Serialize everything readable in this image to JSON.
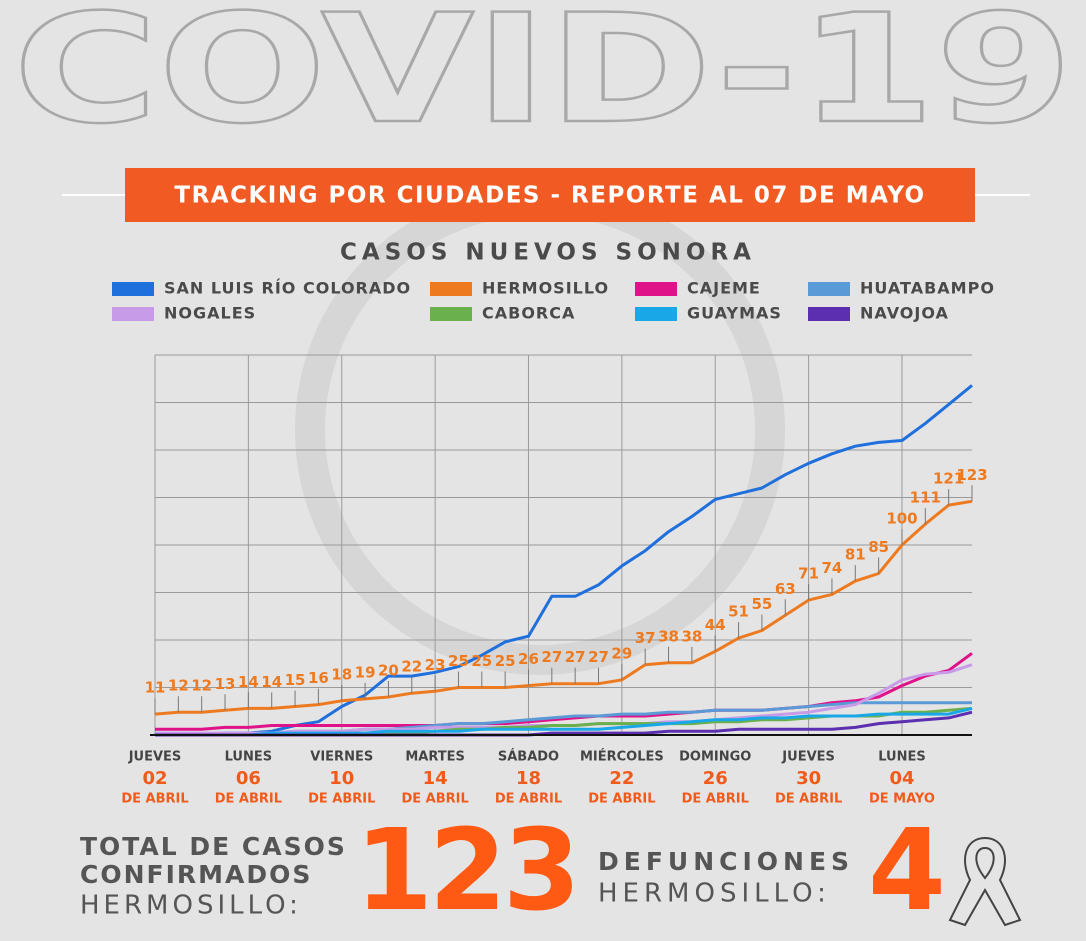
{
  "banner": "COVID-19",
  "header": "TRACKING POR CIUDADES - REPORTE AL 07 DE MAYO",
  "chart_data": {
    "type": "line",
    "title": "CASOS NUEVOS SONORA",
    "categories": [
      {
        "weekday": "JUEVES",
        "day": "02",
        "month": "DE ABRIL"
      },
      null,
      null,
      null,
      {
        "weekday": "LUNES",
        "day": "06",
        "month": "DE ABRIL"
      },
      null,
      null,
      null,
      {
        "weekday": "VIERNES",
        "day": "10",
        "month": "DE ABRIL"
      },
      null,
      null,
      null,
      {
        "weekday": "MARTES",
        "day": "14",
        "month": "DE ABRIL"
      },
      null,
      null,
      null,
      {
        "weekday": "SÁBADO",
        "day": "18",
        "month": "DE ABRIL"
      },
      null,
      null,
      null,
      {
        "weekday": "MIÉRCOLES",
        "day": "22",
        "month": "DE ABRIL"
      },
      null,
      null,
      null,
      {
        "weekday": "DOMINGO",
        "day": "26",
        "month": "DE ABRIL"
      },
      null,
      null,
      null,
      {
        "weekday": "JUEVES",
        "day": "30",
        "month": "DE ABRIL"
      },
      null,
      null,
      null,
      {
        "weekday": "LUNES",
        "day": "04",
        "month": "DE MAYO"
      },
      null,
      null,
      null
    ],
    "series": [
      {
        "name": "SAN LUIS RÍO COLORADO",
        "color": "#1f6fdc",
        "values": [
          0,
          0,
          0,
          1,
          1,
          2,
          5,
          7,
          15,
          21,
          31,
          31,
          33,
          36,
          42,
          49,
          52,
          73,
          73,
          79,
          89,
          97,
          107,
          115,
          124,
          127,
          130,
          137,
          143,
          148,
          152,
          154,
          155,
          164,
          174,
          184
        ]
      },
      {
        "name": "HERMOSILLO",
        "color": "#ee7a1f",
        "labels": true,
        "values": [
          11,
          12,
          12,
          13,
          14,
          14,
          15,
          16,
          18,
          19,
          20,
          22,
          23,
          25,
          25,
          25,
          26,
          27,
          27,
          27,
          29,
          37,
          38,
          38,
          44,
          51,
          55,
          63,
          71,
          74,
          81,
          85,
          100,
          111,
          121,
          123
        ]
      },
      {
        "name": "CAJEME",
        "color": "#e0128a",
        "values": [
          3,
          3,
          3,
          4,
          4,
          5,
          5,
          5,
          5,
          5,
          5,
          5,
          5,
          6,
          6,
          6,
          7,
          8,
          9,
          10,
          10,
          10,
          11,
          12,
          13,
          13,
          13,
          14,
          15,
          17,
          18,
          20,
          26,
          31,
          34,
          43
        ]
      },
      {
        "name": "HUATABAMPO",
        "color": "#5a9ad6",
        "values": [
          0,
          0,
          0,
          0,
          1,
          1,
          2,
          2,
          2,
          3,
          3,
          4,
          5,
          6,
          6,
          7,
          8,
          9,
          10,
          10,
          11,
          11,
          12,
          12,
          13,
          13,
          13,
          14,
          15,
          16,
          17,
          17,
          17,
          17,
          17,
          17
        ]
      },
      {
        "name": "NOGALES",
        "color": "#c89be8",
        "values": [
          1,
          1,
          1,
          1,
          1,
          1,
          2,
          2,
          2,
          3,
          3,
          3,
          4,
          4,
          4,
          4,
          5,
          5,
          5,
          6,
          6,
          6,
          7,
          7,
          8,
          9,
          10,
          11,
          12,
          14,
          16,
          22,
          29,
          32,
          33,
          37
        ]
      },
      {
        "name": "CABORCA",
        "color": "#6ab04c",
        "values": [
          0,
          0,
          0,
          0,
          0,
          0,
          0,
          0,
          1,
          1,
          1,
          1,
          2,
          3,
          3,
          4,
          4,
          5,
          5,
          6,
          6,
          6,
          6,
          6,
          7,
          7,
          8,
          8,
          9,
          10,
          10,
          10,
          12,
          12,
          13,
          14
        ]
      },
      {
        "name": "GUAYMAS",
        "color": "#1aa7e8",
        "values": [
          0,
          0,
          0,
          0,
          0,
          1,
          1,
          1,
          1,
          1,
          2,
          2,
          2,
          2,
          3,
          3,
          3,
          3,
          3,
          3,
          4,
          5,
          6,
          7,
          8,
          8,
          9,
          9,
          10,
          10,
          10,
          11,
          11,
          11,
          11,
          14
        ]
      },
      {
        "name": "NAVOJOA",
        "color": "#5b2fb0",
        "values": [
          0,
          0,
          0,
          0,
          0,
          0,
          0,
          0,
          0,
          0,
          0,
          0,
          0,
          0,
          0,
          0,
          0,
          1,
          1,
          1,
          1,
          1,
          2,
          2,
          2,
          3,
          3,
          3,
          3,
          3,
          4,
          6,
          7,
          8,
          9,
          12
        ]
      }
    ],
    "ylim": [
      0,
      200
    ],
    "yticks": [
      0,
      25,
      50,
      75,
      100,
      125,
      150,
      175,
      200
    ],
    "grid": true
  },
  "footer": {
    "total": {
      "lines": [
        "TOTAL DE CASOS",
        "CONFIRMADOS"
      ],
      "place": "HERMOSILLO:",
      "value": 123
    },
    "deaths": {
      "line": "DEFUNCIONES",
      "place": "HERMOSILLO:",
      "value": 4
    }
  }
}
